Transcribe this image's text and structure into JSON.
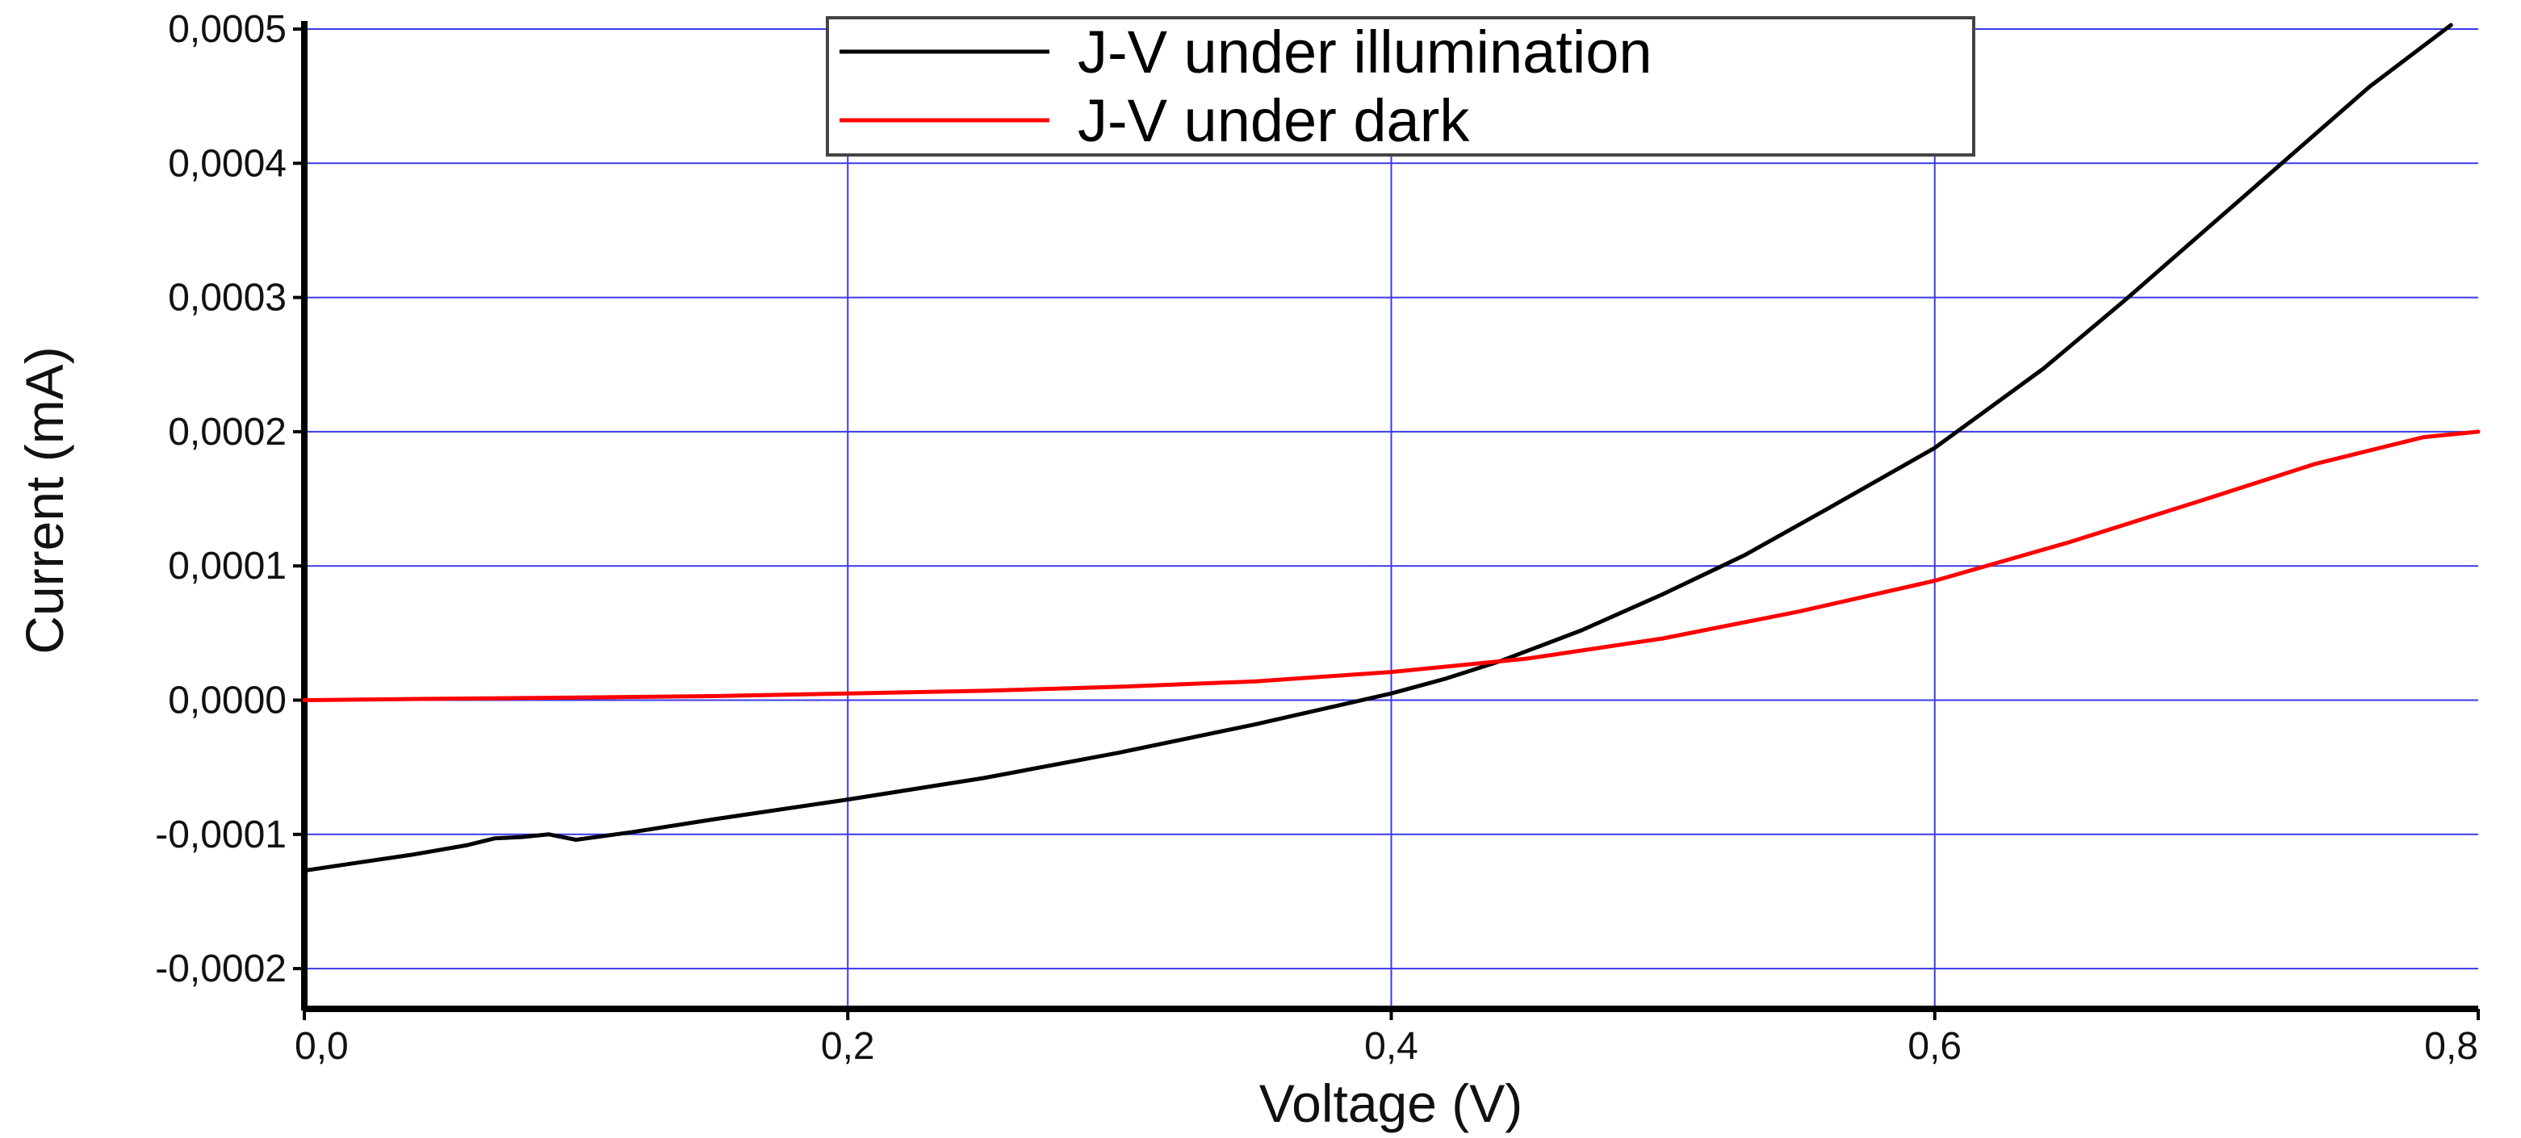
{
  "chart_data": {
    "type": "line",
    "title": "",
    "xlabel": "Voltage (V)",
    "ylabel": "Current (mA)",
    "xlim": [
      0.0,
      0.8
    ],
    "ylim": [
      -0.00023,
      0.0005
    ],
    "grid": true,
    "grid_color": "#3a3ae8",
    "legend_position": "top-center",
    "x_ticks": [
      {
        "value": 0.0,
        "label": "0,0"
      },
      {
        "value": 0.2,
        "label": "0,2"
      },
      {
        "value": 0.4,
        "label": "0,4"
      },
      {
        "value": 0.6,
        "label": "0,6"
      },
      {
        "value": 0.8,
        "label": "0,8"
      }
    ],
    "y_ticks": [
      {
        "value": -0.0002,
        "label": "-0,0002"
      },
      {
        "value": -0.0001,
        "label": "-0,0001"
      },
      {
        "value": 0.0,
        "label": "0,0000"
      },
      {
        "value": 0.0001,
        "label": "0,0001"
      },
      {
        "value": 0.0002,
        "label": "0,0002"
      },
      {
        "value": 0.0003,
        "label": "0,0003"
      },
      {
        "value": 0.0004,
        "label": "0,0004"
      },
      {
        "value": 0.0005,
        "label": "0,0005"
      }
    ],
    "series": [
      {
        "name": "J-V under illumination",
        "color": "#000000",
        "x": [
          0.0,
          0.02,
          0.04,
          0.06,
          0.07,
          0.08,
          0.09,
          0.1,
          0.12,
          0.15,
          0.2,
          0.25,
          0.3,
          0.35,
          0.4,
          0.42,
          0.44,
          0.47,
          0.5,
          0.53,
          0.56,
          0.6,
          0.64,
          0.67,
          0.7,
          0.73,
          0.76,
          0.79
        ],
        "y": [
          -0.000127,
          -0.000121,
          -0.000115,
          -0.000108,
          -0.000103,
          -0.000102,
          -0.0001,
          -0.000104,
          -9.85e-05,
          -8.9e-05,
          -7.4e-05,
          -5.8e-05,
          -3.9e-05,
          -1.8e-05,
          5e-06,
          1.6e-05,
          2.9e-05,
          5.2e-05,
          7.9e-05,
          0.000108,
          0.000142,
          0.000188,
          0.000247,
          0.000298,
          0.000351,
          0.000404,
          0.000457,
          0.000503
        ]
      },
      {
        "name": "J-V under dark",
        "color": "#ff0000",
        "x": [
          0.0,
          0.05,
          0.1,
          0.15,
          0.2,
          0.25,
          0.3,
          0.35,
          0.4,
          0.45,
          0.5,
          0.55,
          0.6,
          0.65,
          0.7,
          0.74,
          0.78,
          0.8
        ],
        "y": [
          0.0,
          1e-06,
          2e-06,
          3e-06,
          5e-06,
          7e-06,
          1e-05,
          1.4e-05,
          2.1e-05,
          3.1e-05,
          4.6e-05,
          6.6e-05,
          8.9e-05,
          0.000118,
          0.00015,
          0.000176,
          0.000196,
          0.0002
        ]
      }
    ]
  }
}
